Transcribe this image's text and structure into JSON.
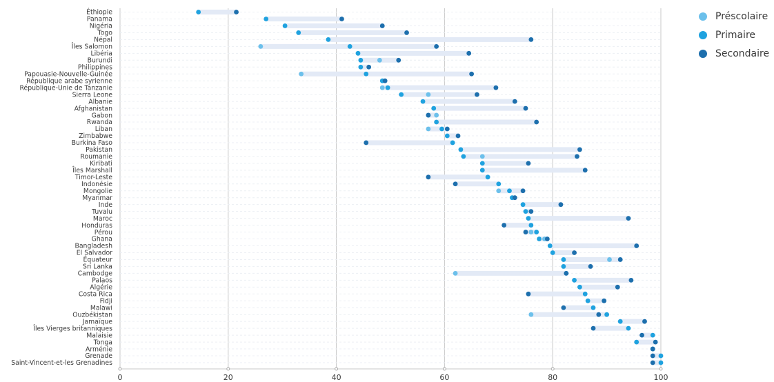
{
  "colors": {
    "preschool": "#6cc0eb",
    "primary": "#1fa2df",
    "secondary": "#1d6fad",
    "range": "#e3eaf6",
    "grid": "#c8c8c8",
    "rowline": "#eceff4",
    "text": "#3a3a3a"
  },
  "legend": [
    {
      "label": "Préscolaire",
      "key": "preschool"
    },
    {
      "label": "Primaire",
      "key": "primary"
    },
    {
      "label": "Secondaire",
      "key": "secondary"
    }
  ],
  "chart_data": {
    "type": "dot-range",
    "xlim": [
      0,
      100
    ],
    "xticks": [
      0,
      20,
      40,
      60,
      80,
      100
    ],
    "grid": true,
    "legend_position": "top-right",
    "series": [
      "Préscolaire",
      "Primaire",
      "Secondaire"
    ],
    "rows": [
      {
        "country": "Éthiopie",
        "preschool": null,
        "primary": 14.5,
        "secondary": 21.5
      },
      {
        "country": "Panama",
        "preschool": null,
        "primary": 27,
        "secondary": 41
      },
      {
        "country": "Nigéria",
        "preschool": null,
        "primary": 30.5,
        "secondary": 48.5
      },
      {
        "country": "Togo",
        "preschool": null,
        "primary": 33,
        "secondary": 53
      },
      {
        "country": "Népal",
        "preschool": null,
        "primary": 38.5,
        "secondary": 76
      },
      {
        "country": "Îles Salomon",
        "preschool": 26,
        "primary": 42.5,
        "secondary": 58.5
      },
      {
        "country": "Libéria",
        "preschool": null,
        "primary": 44,
        "secondary": 64.5
      },
      {
        "country": "Burundi",
        "preschool": 48,
        "primary": 44.5,
        "secondary": 51.5
      },
      {
        "country": "Philippines",
        "preschool": null,
        "primary": 44.5,
        "secondary": 46
      },
      {
        "country": "Papouasie-Nouvelle-Guinée",
        "preschool": 33.5,
        "primary": 45.5,
        "secondary": 65
      },
      {
        "country": "République arabe syrienne",
        "preschool": null,
        "primary": 48.5,
        "secondary": 49
      },
      {
        "country": "République-Unie de Tanzanie",
        "preschool": 48.5,
        "primary": 49.5,
        "secondary": 69.5
      },
      {
        "country": "Sierra Leone",
        "preschool": 57,
        "primary": 52,
        "secondary": 66
      },
      {
        "country": "Albanie",
        "preschool": null,
        "primary": 56,
        "secondary": 73
      },
      {
        "country": "Afghanistan",
        "preschool": null,
        "primary": 58,
        "secondary": 75
      },
      {
        "country": "Gabon",
        "preschool": 58.5,
        "primary": 57,
        "secondary": 57
      },
      {
        "country": "Rwanda",
        "preschool": null,
        "primary": 58.5,
        "secondary": 77
      },
      {
        "country": "Liban",
        "preschool": 57,
        "primary": 59.5,
        "secondary": 60.5
      },
      {
        "country": "Zimbabwe",
        "preschool": null,
        "primary": 60.5,
        "secondary": 62.5
      },
      {
        "country": "Burkina Faso",
        "preschool": null,
        "primary": 61.5,
        "secondary": 45.5
      },
      {
        "country": "Pakistan",
        "preschool": null,
        "primary": 63,
        "secondary": 85
      },
      {
        "country": "Roumanie",
        "preschool": 67,
        "primary": 63.5,
        "secondary": 84.5
      },
      {
        "country": "Kiribati",
        "preschool": null,
        "primary": 67,
        "secondary": 75.5
      },
      {
        "country": "Îles Marshall",
        "preschool": null,
        "primary": 67,
        "secondary": 86
      },
      {
        "country": "Timor-Leste",
        "preschool": null,
        "primary": 68,
        "secondary": 57
      },
      {
        "country": "Indonésie",
        "preschool": null,
        "primary": 70,
        "secondary": 62
      },
      {
        "country": "Mongolie",
        "preschool": 70,
        "primary": 72,
        "secondary": 74.5
      },
      {
        "country": "Myanmar",
        "preschool": null,
        "primary": 72.5,
        "secondary": 73
      },
      {
        "country": "Inde",
        "preschool": null,
        "primary": 74.5,
        "secondary": 81.5
      },
      {
        "country": "Tuvalu",
        "preschool": null,
        "primary": 75,
        "secondary": 76
      },
      {
        "country": "Maroc",
        "preschool": null,
        "primary": 75.5,
        "secondary": 94
      },
      {
        "country": "Honduras",
        "preschool": null,
        "primary": 76,
        "secondary": 71
      },
      {
        "country": "Pérou",
        "preschool": 76,
        "primary": 77,
        "secondary": 75
      },
      {
        "country": "Ghana",
        "preschool": 78.5,
        "primary": 77.5,
        "secondary": 79
      },
      {
        "country": "Bangladesh",
        "preschool": null,
        "primary": 79.5,
        "secondary": 95.5
      },
      {
        "country": "El Salvador",
        "preschool": null,
        "primary": 80,
        "secondary": 84
      },
      {
        "country": "Équateur",
        "preschool": 90.5,
        "primary": 82,
        "secondary": 92.5
      },
      {
        "country": "Sri Lanka",
        "preschool": null,
        "primary": 82,
        "secondary": 87
      },
      {
        "country": "Cambodge",
        "preschool": 62,
        "primary": 82.5,
        "secondary": 82.5
      },
      {
        "country": "Palaos",
        "preschool": null,
        "primary": 84,
        "secondary": 94.5
      },
      {
        "country": "Algérie",
        "preschool": null,
        "primary": 85,
        "secondary": 92
      },
      {
        "country": "Costa Rica",
        "preschool": null,
        "primary": 86,
        "secondary": 75.5
      },
      {
        "country": "Fidji",
        "preschool": 89.5,
        "primary": 86.5,
        "secondary": 89.5
      },
      {
        "country": "Malawi",
        "preschool": null,
        "primary": 87.5,
        "secondary": 82
      },
      {
        "country": "Ouzbékistan",
        "preschool": 76,
        "primary": 90,
        "secondary": 88.5
      },
      {
        "country": "Jamaïque",
        "preschool": null,
        "primary": 92.5,
        "secondary": 97
      },
      {
        "country": "Îles Vierges britanniques",
        "preschool": null,
        "primary": 94,
        "secondary": 87.5
      },
      {
        "country": "Malaisie",
        "preschool": null,
        "primary": 98.5,
        "secondary": 96.5
      },
      {
        "country": "Tonga",
        "preschool": null,
        "primary": 95.5,
        "secondary": 99
      },
      {
        "country": "Arménie",
        "preschool": null,
        "primary": 98.5,
        "secondary": 98.5
      },
      {
        "country": "Grenade",
        "preschool": null,
        "primary": 100,
        "secondary": 98.5
      },
      {
        "country": "Saint-Vincent-et-les Grenadines",
        "preschool": null,
        "primary": 100,
        "secondary": 98.5
      }
    ]
  }
}
